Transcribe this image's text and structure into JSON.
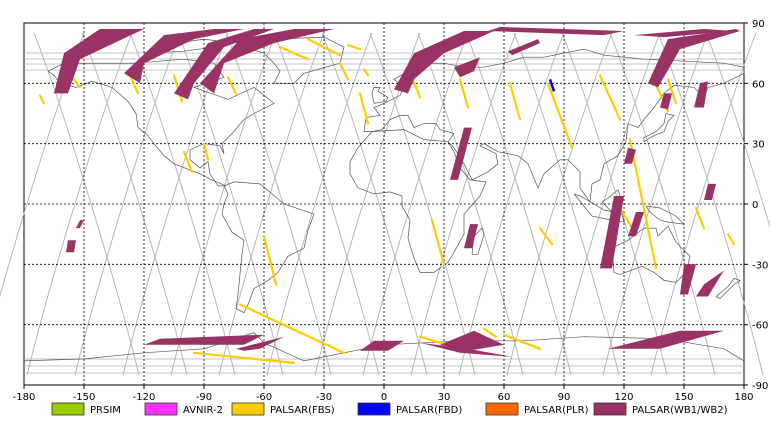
{
  "axes": {
    "x_ticks": [
      "-180",
      "-150",
      "-120",
      "-90",
      "-60",
      "-30",
      "0",
      "30",
      "60",
      "90",
      "120",
      "150",
      "180"
    ],
    "y_ticks": [
      "90",
      "60",
      "30",
      "0",
      "-30",
      "-60",
      "-90"
    ],
    "x_range": [
      -180,
      180
    ],
    "y_range": [
      -90,
      90
    ],
    "grid": "dashed"
  },
  "legend": [
    {
      "label": "PRSIM",
      "color": "#99cc00"
    },
    {
      "label": "AVNIR-2",
      "color": "#ff33ff"
    },
    {
      "label": "PALSAR(FBS)",
      "color": "#ffcc00"
    },
    {
      "label": "PALSAR(FBD)",
      "color": "#0000ff"
    },
    {
      "label": "PALSAR(PLR)",
      "color": "#ff6600"
    },
    {
      "label": "PALSAR(WB1/WB2)",
      "color": "#993366"
    }
  ],
  "colors": {
    "orbit": "#b0b0b0",
    "coast": "#555555",
    "wb": "#993366",
    "fbs": "#ffcc00",
    "fbd": "#0000ff"
  }
}
